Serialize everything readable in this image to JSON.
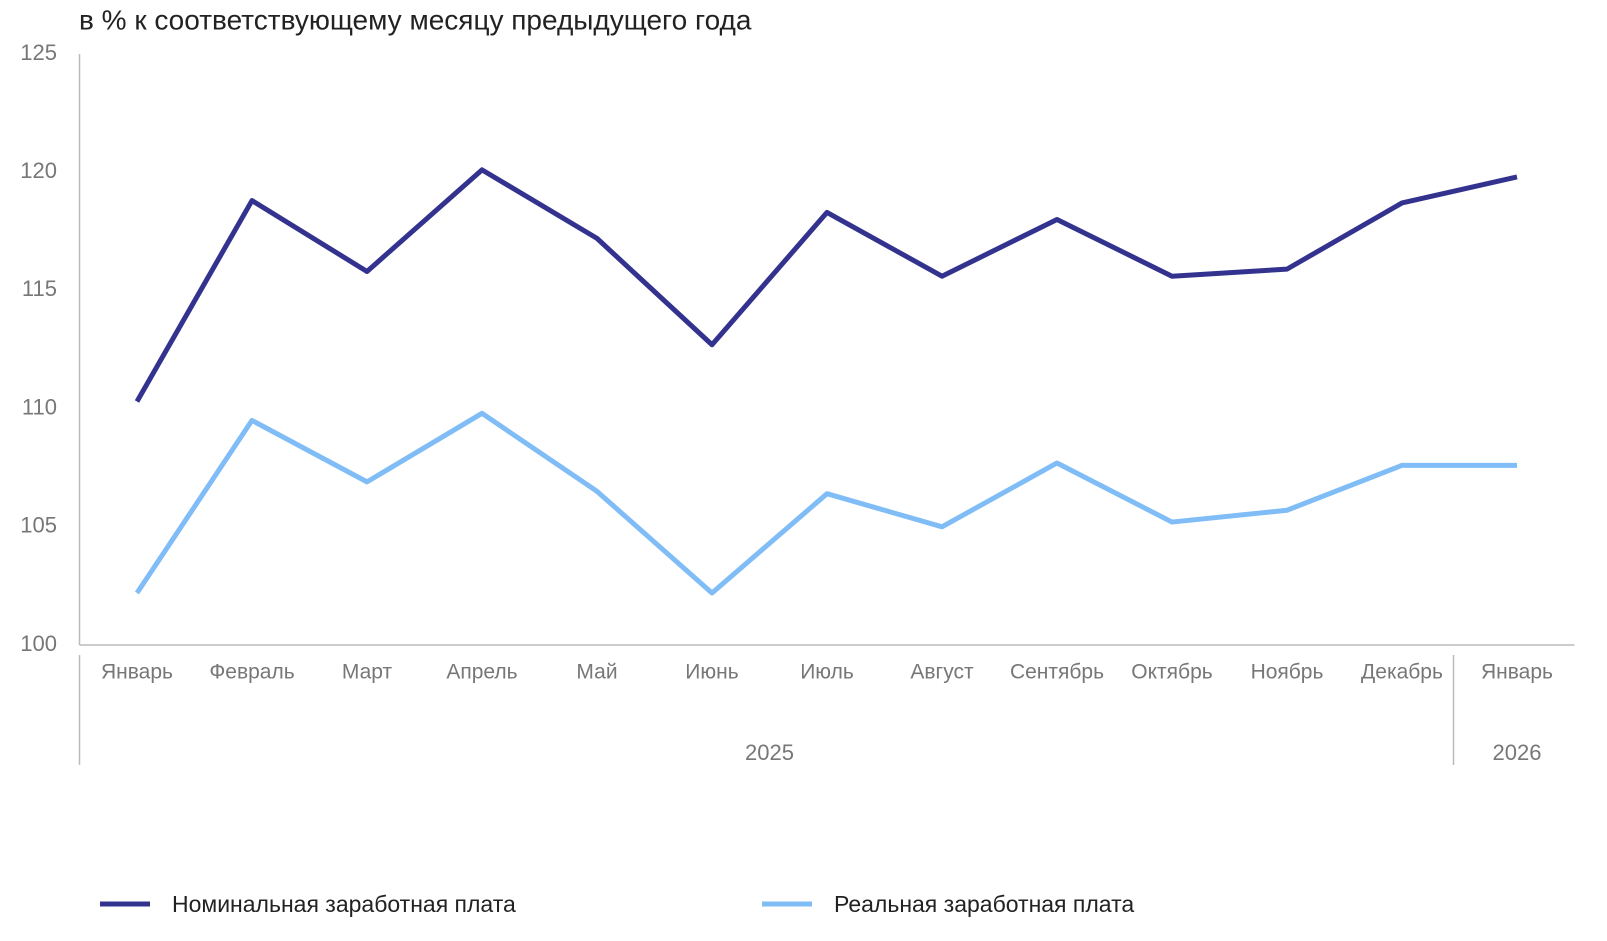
{
  "chart_data": {
    "type": "line",
    "title": "в % к соответствующему месяцу предыдущего года",
    "categories": [
      "Январь",
      "Февраль",
      "Март",
      "Апрель",
      "Май",
      "Июнь",
      "Июль",
      "Август",
      "Сентябрь",
      "Октябрь",
      "Ноябрь",
      "Декабрь",
      "Январь"
    ],
    "year_groups": [
      {
        "label": "2025",
        "span": 12
      },
      {
        "label": "2026",
        "span": 1
      }
    ],
    "series": [
      {
        "name": "Номинальная заработная плата",
        "color": "#33338f",
        "values": [
          110.3,
          118.8,
          115.8,
          120.1,
          117.2,
          112.7,
          118.3,
          115.6,
          118.0,
          115.6,
          115.9,
          118.7,
          119.8
        ]
      },
      {
        "name": "Реальная заработная плата",
        "color": "#80bdf6",
        "values": [
          102.2,
          109.5,
          106.9,
          109.8,
          106.5,
          102.2,
          106.4,
          105.0,
          107.7,
          105.2,
          105.7,
          107.6,
          107.6
        ]
      }
    ],
    "ylim": [
      100,
      125
    ],
    "yticks": [
      100,
      105,
      110,
      115,
      120,
      125
    ],
    "grid": false,
    "legend": "bottom"
  }
}
